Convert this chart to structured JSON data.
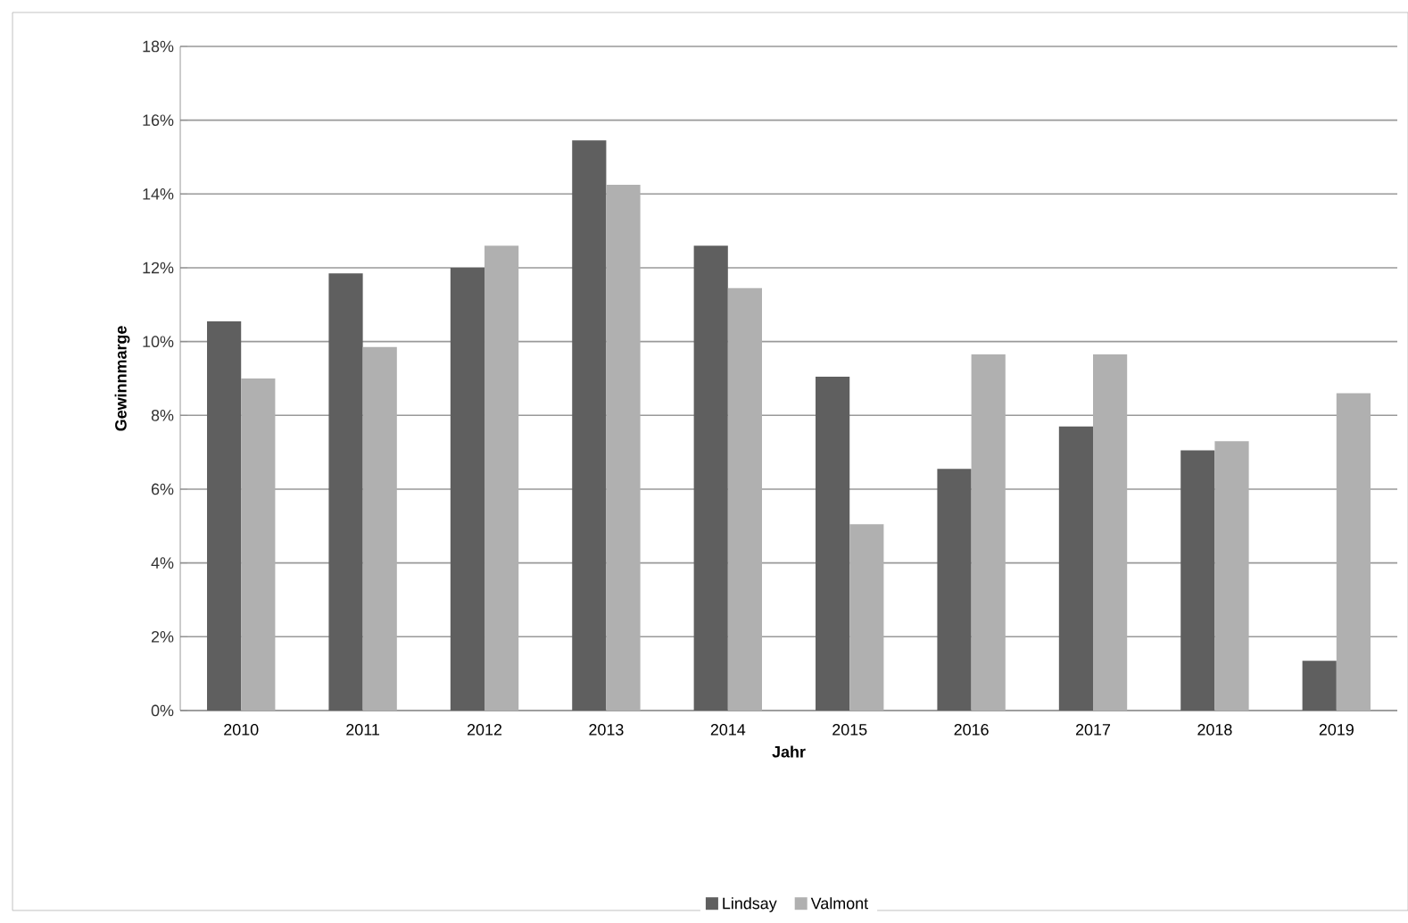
{
  "chart_data": {
    "type": "bar",
    "xlabel": "Jahr",
    "ylabel": "Gewinnmarge",
    "categories": [
      "2010",
      "2011",
      "2012",
      "2013",
      "2014",
      "2015",
      "2016",
      "2017",
      "2018",
      "2019"
    ],
    "series": [
      {
        "name": "Lindsay",
        "color": "#5f5f5f",
        "values": [
          10.55,
          11.85,
          12.0,
          15.45,
          12.6,
          9.05,
          6.55,
          7.7,
          7.05,
          1.35
        ]
      },
      {
        "name": "Valmont",
        "color": "#b0b0b0",
        "values": [
          9.0,
          9.85,
          12.6,
          14.25,
          11.45,
          5.05,
          9.65,
          9.65,
          7.3,
          8.6
        ]
      }
    ],
    "ylim": [
      0,
      18
    ],
    "yticks": [
      {
        "value": 0,
        "label": "0%"
      },
      {
        "value": 2,
        "label": "2%"
      },
      {
        "value": 4,
        "label": "4%"
      },
      {
        "value": 6,
        "label": "6%"
      },
      {
        "value": 8,
        "label": "8%"
      },
      {
        "value": 10,
        "label": "10%"
      },
      {
        "value": 12,
        "label": "12%"
      },
      {
        "value": 14,
        "label": "14%"
      },
      {
        "value": 16,
        "label": "16%"
      },
      {
        "value": 18,
        "label": "18%"
      }
    ],
    "grid": "y",
    "legend": "bottom"
  }
}
